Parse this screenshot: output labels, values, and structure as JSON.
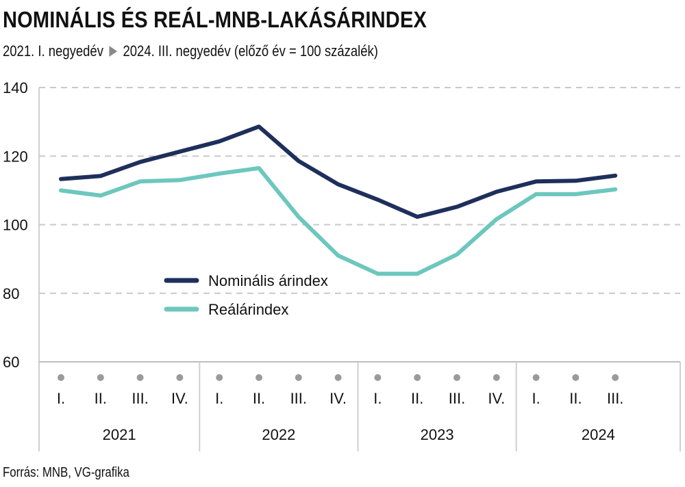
{
  "header": {
    "title": "NOMINÁLIS ÉS REÁL-MNB-LAKÁSÁRINDEX",
    "subtitle_start": "2021. I. negyedév",
    "subtitle_end": "2024. III. negyedév (előző év = 100 százalék)"
  },
  "footer": {
    "source": "Forrás: MNB, VG-grafika"
  },
  "chart_data": {
    "type": "line",
    "title": "NOMINÁLIS ÉS REÁL-MNB-LAKÁSÁRINDEX",
    "xlabel": "",
    "ylabel": "",
    "ylim": [
      60,
      140
    ],
    "yticks": [
      60,
      80,
      100,
      120,
      140
    ],
    "grid": true,
    "legend_position": "center-left",
    "categories": [
      "I.",
      "II.",
      "III.",
      "IV.",
      "I.",
      "II.",
      "III.",
      "IV.",
      "I.",
      "II.",
      "III.",
      "IV.",
      "I.",
      "II.",
      "III."
    ],
    "year_groups": [
      {
        "label": "2021",
        "count": 4
      },
      {
        "label": "2022",
        "count": 4
      },
      {
        "label": "2023",
        "count": 4
      },
      {
        "label": "2024",
        "count": 3
      }
    ],
    "series": [
      {
        "name": "Nominális árindex",
        "color": "#1f2f5c",
        "values": [
          113.3,
          114.2,
          118.3,
          121.3,
          124.3,
          128.6,
          118.6,
          111.8,
          107.3,
          102.3,
          105.2,
          109.6,
          112.6,
          112.8,
          114.3
        ]
      },
      {
        "name": "Reálárindex",
        "color": "#6cc7bd",
        "values": [
          110.0,
          108.5,
          112.6,
          113.0,
          114.9,
          116.5,
          102.3,
          91.0,
          85.7,
          85.7,
          91.3,
          101.6,
          108.9,
          108.9,
          110.3
        ]
      }
    ]
  }
}
